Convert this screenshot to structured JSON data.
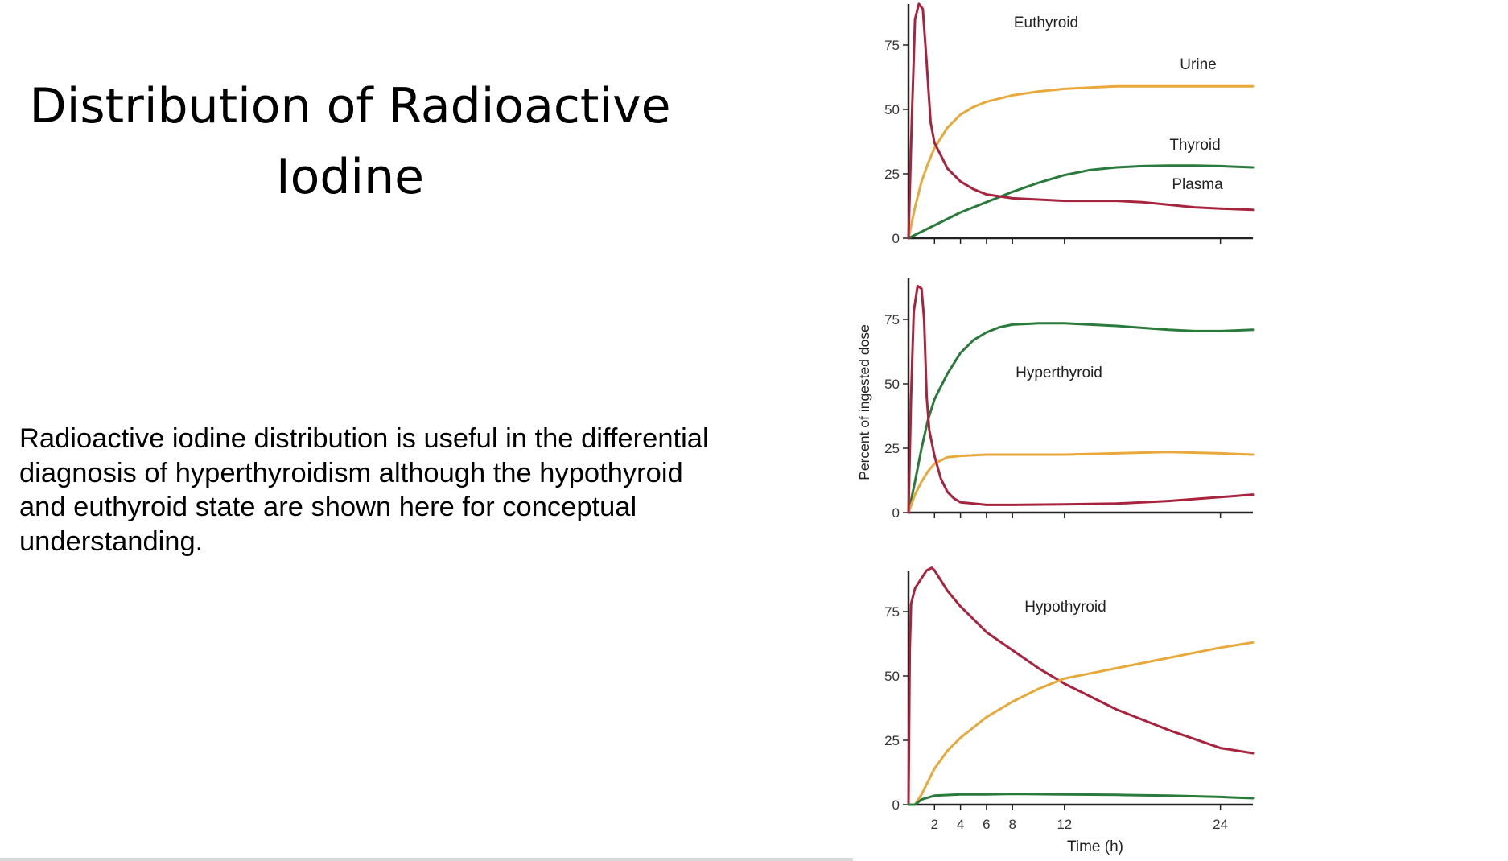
{
  "slide": {
    "title_line1": "Distribution of Radioactive",
    "title_line2": "Iodine",
    "body": "Radioactive iodine distribution is useful in the differential diagnosis of hyperthyroidism although the hypothyroid and euthyroid state are shown here for conceptual understanding."
  },
  "chart_data": [
    {
      "type": "line",
      "title": "Euthyroid",
      "ylabel": "Percent of ingested dose",
      "xlabel": "Time (h)",
      "ylim": [
        0,
        90
      ],
      "xlim": [
        0,
        26.5
      ],
      "yticks": [
        0,
        25,
        50,
        75
      ],
      "xticks": [
        2,
        4,
        6,
        8,
        12,
        24
      ],
      "xtick_labels_shown": false,
      "colors": {
        "Urine": "#e8a83a",
        "Thyroid": "#2a7a3b",
        "Plasma": "#a8243e"
      },
      "series": [
        {
          "name": "Urine",
          "color": "#e8a83a",
          "points": [
            [
              0,
              0
            ],
            [
              0.5,
              12
            ],
            [
              1,
              22
            ],
            [
              1.5,
              29
            ],
            [
              2,
              35
            ],
            [
              3,
              43
            ],
            [
              4,
              48
            ],
            [
              5,
              51
            ],
            [
              6,
              53
            ],
            [
              8,
              55.5
            ],
            [
              10,
              57
            ],
            [
              12,
              58
            ],
            [
              14,
              58.5
            ],
            [
              16,
              59
            ],
            [
              20,
              59
            ],
            [
              24,
              59
            ],
            [
              26.5,
              59
            ]
          ]
        },
        {
          "name": "Thyroid",
          "color": "#2a7a3b",
          "points": [
            [
              0,
              0
            ],
            [
              1,
              2.5
            ],
            [
              2,
              5
            ],
            [
              4,
              10
            ],
            [
              6,
              14
            ],
            [
              8,
              18
            ],
            [
              10,
              21.5
            ],
            [
              12,
              24.5
            ],
            [
              14,
              26.5
            ],
            [
              16,
              27.5
            ],
            [
              18,
              28
            ],
            [
              20,
              28.2
            ],
            [
              22,
              28.2
            ],
            [
              24,
              28
            ],
            [
              26.5,
              27.5
            ]
          ]
        },
        {
          "name": "Plasma",
          "color": "#a8243e",
          "points": [
            [
              0,
              0
            ],
            [
              0.25,
              45
            ],
            [
              0.5,
              85
            ],
            [
              0.8,
              91
            ],
            [
              1.1,
              89
            ],
            [
              1.4,
              68
            ],
            [
              1.7,
              45
            ],
            [
              2,
              37
            ],
            [
              2.5,
              32
            ],
            [
              3,
              27
            ],
            [
              4,
              22
            ],
            [
              5,
              19
            ],
            [
              6,
              17
            ],
            [
              8,
              15.5
            ],
            [
              10,
              15
            ],
            [
              12,
              14.5
            ],
            [
              16,
              14.5
            ],
            [
              18,
              14
            ],
            [
              20,
              13
            ],
            [
              22,
              12
            ],
            [
              24,
              11.5
            ],
            [
              26.5,
              11
            ]
          ]
        }
      ],
      "annotations": [
        "Urine",
        "Thyroid",
        "Plasma"
      ]
    },
    {
      "type": "line",
      "title": "Hyperthyroid",
      "ylabel": "Percent of ingested dose",
      "xlabel": "Time (h)",
      "ylim": [
        0,
        90
      ],
      "xlim": [
        0,
        26.5
      ],
      "yticks": [
        0,
        25,
        50,
        75
      ],
      "xticks": [
        2,
        4,
        6,
        8,
        12,
        24
      ],
      "xtick_labels_shown": false,
      "series": [
        {
          "name": "Thyroid",
          "color": "#2a7a3b",
          "points": [
            [
              0,
              0
            ],
            [
              0.5,
              12
            ],
            [
              1,
              25
            ],
            [
              1.5,
              36
            ],
            [
              2,
              44
            ],
            [
              3,
              54
            ],
            [
              4,
              62
            ],
            [
              5,
              67
            ],
            [
              6,
              70
            ],
            [
              7,
              72
            ],
            [
              8,
              73
            ],
            [
              10,
              73.5
            ],
            [
              12,
              73.5
            ],
            [
              16,
              72.5
            ],
            [
              20,
              71
            ],
            [
              22,
              70.5
            ],
            [
              24,
              70.5
            ],
            [
              26.5,
              71
            ]
          ]
        },
        {
          "name": "Urine",
          "color": "#e8a83a",
          "points": [
            [
              0,
              0
            ],
            [
              0.5,
              7
            ],
            [
              1,
              12
            ],
            [
              1.5,
              16
            ],
            [
              2,
              19
            ],
            [
              3,
              21.5
            ],
            [
              4,
              22
            ],
            [
              6,
              22.5
            ],
            [
              8,
              22.5
            ],
            [
              12,
              22.5
            ],
            [
              16,
              23
            ],
            [
              20,
              23.5
            ],
            [
              24,
              23
            ],
            [
              26.5,
              22.5
            ]
          ]
        },
        {
          "name": "Plasma",
          "color": "#a8243e",
          "points": [
            [
              0,
              0
            ],
            [
              0.2,
              45
            ],
            [
              0.4,
              78
            ],
            [
              0.7,
              88
            ],
            [
              1,
              87
            ],
            [
              1.2,
              75
            ],
            [
              1.4,
              45
            ],
            [
              1.6,
              32
            ],
            [
              2,
              22
            ],
            [
              2.5,
              13
            ],
            [
              3,
              8
            ],
            [
              3.5,
              5.5
            ],
            [
              4,
              4
            ],
            [
              5,
              3.5
            ],
            [
              6,
              3
            ],
            [
              8,
              3
            ],
            [
              12,
              3.2
            ],
            [
              16,
              3.5
            ],
            [
              20,
              4.5
            ],
            [
              24,
              6
            ],
            [
              26.5,
              7
            ]
          ]
        }
      ]
    },
    {
      "type": "line",
      "title": "Hypothyroid",
      "ylabel": "Percent of ingested dose",
      "xlabel": "Time (h)",
      "ylim": [
        0,
        90
      ],
      "xlim": [
        0,
        26.5
      ],
      "yticks": [
        0,
        25,
        50,
        75
      ],
      "xticks": [
        2,
        4,
        6,
        8,
        12,
        24
      ],
      "xtick_labels": [
        "2",
        "4",
        "6",
        "8",
        "12",
        "24"
      ],
      "series": [
        {
          "name": "Plasma",
          "color": "#a8243e",
          "points": [
            [
              0,
              0
            ],
            [
              0.1,
              60
            ],
            [
              0.2,
              78
            ],
            [
              0.5,
              84
            ],
            [
              1,
              88
            ],
            [
              1.4,
              91
            ],
            [
              1.8,
              92
            ],
            [
              2,
              91
            ],
            [
              2.5,
              87
            ],
            [
              3,
              83
            ],
            [
              4,
              77
            ],
            [
              5,
              72
            ],
            [
              6,
              67
            ],
            [
              8,
              60
            ],
            [
              10,
              53
            ],
            [
              12,
              47
            ],
            [
              14,
              42
            ],
            [
              16,
              37
            ],
            [
              18,
              33
            ],
            [
              20,
              29
            ],
            [
              22,
              25.5
            ],
            [
              24,
              22
            ],
            [
              26.5,
              20
            ]
          ]
        },
        {
          "name": "Urine",
          "color": "#e8a83a",
          "points": [
            [
              0,
              0
            ],
            [
              0.5,
              0
            ],
            [
              1,
              4
            ],
            [
              1.5,
              9
            ],
            [
              2,
              14
            ],
            [
              3,
              21
            ],
            [
              4,
              26
            ],
            [
              5,
              30
            ],
            [
              6,
              34
            ],
            [
              8,
              40
            ],
            [
              10,
              45
            ],
            [
              12,
              49
            ],
            [
              14,
              51
            ],
            [
              16,
              53
            ],
            [
              18,
              55
            ],
            [
              20,
              57
            ],
            [
              22,
              59
            ],
            [
              24,
              61
            ],
            [
              26.5,
              63
            ]
          ]
        },
        {
          "name": "Thyroid",
          "color": "#2a7a3b",
          "points": [
            [
              0,
              0
            ],
            [
              0.5,
              0
            ],
            [
              1,
              2
            ],
            [
              2,
              3.5
            ],
            [
              4,
              4
            ],
            [
              6,
              4
            ],
            [
              8,
              4.2
            ],
            [
              12,
              4
            ],
            [
              16,
              3.8
            ],
            [
              20,
              3.5
            ],
            [
              24,
              3
            ],
            [
              26.5,
              2.5
            ]
          ]
        }
      ]
    }
  ]
}
